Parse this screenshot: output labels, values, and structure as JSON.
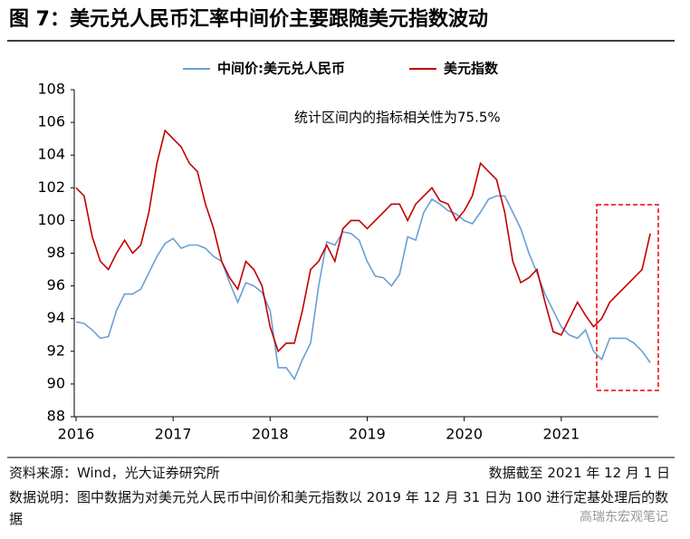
{
  "chart_data": {
    "type": "line",
    "title": "图 7：美元兑人民币汇率中间价主要跟随美元指数波动",
    "annotation": "统计区间内的指标相关性为75.5%",
    "x": [
      2016,
      2016.083,
      2016.167,
      2016.25,
      2016.333,
      2016.417,
      2016.5,
      2016.583,
      2016.667,
      2016.75,
      2016.833,
      2016.917,
      2017,
      2017.083,
      2017.167,
      2017.25,
      2017.333,
      2017.417,
      2017.5,
      2017.583,
      2017.667,
      2017.75,
      2017.833,
      2017.917,
      2018,
      2018.083,
      2018.167,
      2018.25,
      2018.333,
      2018.417,
      2018.5,
      2018.583,
      2018.667,
      2018.75,
      2018.833,
      2018.917,
      2019,
      2019.083,
      2019.167,
      2019.25,
      2019.333,
      2019.417,
      2019.5,
      2019.583,
      2019.667,
      2019.75,
      2019.833,
      2019.917,
      2020,
      2020.083,
      2020.167,
      2020.25,
      2020.333,
      2020.417,
      2020.5,
      2020.583,
      2020.667,
      2020.75,
      2020.833,
      2020.917,
      2021,
      2021.083,
      2021.167,
      2021.25,
      2021.333,
      2021.417,
      2021.5,
      2021.583,
      2021.667,
      2021.75,
      2021.833,
      2021.917
    ],
    "series": [
      {
        "name": "中间价:美元兑人民币",
        "color": "#6a9fd3",
        "values": [
          93.8,
          93.7,
          93.3,
          92.8,
          92.9,
          94.5,
          95.5,
          95.5,
          95.8,
          96.8,
          97.8,
          98.6,
          98.9,
          98.3,
          98.5,
          98.5,
          98.3,
          97.8,
          97.5,
          96.2,
          95.0,
          96.2,
          96.0,
          95.6,
          94.5,
          91.0,
          91.0,
          90.3,
          91.5,
          92.5,
          96.0,
          98.7,
          98.5,
          99.3,
          99.2,
          98.8,
          97.5,
          96.6,
          96.5,
          96.0,
          96.7,
          99.0,
          98.8,
          100.5,
          101.3,
          101.0,
          100.6,
          100.4,
          100.0,
          99.8,
          100.5,
          101.3,
          101.5,
          101.5,
          100.5,
          99.5,
          98.0,
          96.8,
          95.5,
          94.5,
          93.5,
          93.0,
          92.8,
          93.3,
          92.0,
          91.5,
          92.8,
          92.8,
          92.8,
          92.5,
          92.0,
          91.3
        ]
      },
      {
        "name": "美元指数",
        "color": "#c00000",
        "values": [
          102.0,
          101.5,
          99.0,
          97.5,
          97.0,
          98.0,
          98.8,
          98.0,
          98.5,
          100.5,
          103.5,
          105.5,
          105.0,
          104.5,
          103.5,
          103.0,
          101.0,
          99.5,
          97.5,
          96.5,
          95.8,
          97.5,
          97.0,
          96.0,
          93.5,
          92.0,
          92.5,
          92.5,
          94.5,
          97.0,
          97.5,
          98.5,
          97.5,
          99.5,
          100.0,
          100.0,
          99.5,
          100.0,
          100.5,
          101.0,
          101.0,
          100.0,
          101.0,
          101.5,
          102.0,
          101.2,
          101.0,
          100.0,
          100.6,
          101.5,
          103.5,
          103.0,
          102.5,
          100.5,
          97.5,
          96.2,
          96.5,
          97.0,
          95.0,
          93.2,
          93.0,
          94.0,
          95.0,
          94.2,
          93.5,
          94.0,
          95.0,
          95.5,
          96.0,
          96.5,
          97.0,
          99.2
        ]
      }
    ],
    "xlim": [
      2016,
      2022
    ],
    "xticks": [
      2016,
      2017,
      2018,
      2019,
      2020,
      2021
    ],
    "ylim": [
      88,
      108
    ],
    "yticks": [
      88,
      90,
      92,
      94,
      96,
      98,
      100,
      102,
      104,
      106,
      108
    ],
    "legend": "top"
  },
  "source": "资料来源：Wind，光大证券研究所",
  "data_cutoff": "数据截至 2021 年 12 月 1 日",
  "note": "数据说明：图中数据为对美元兑人民币中间价和美元指数以 2019 年 12 月 31 日为 100 进行定基处理后的数据",
  "watermark": "高瑞东宏观笔记"
}
